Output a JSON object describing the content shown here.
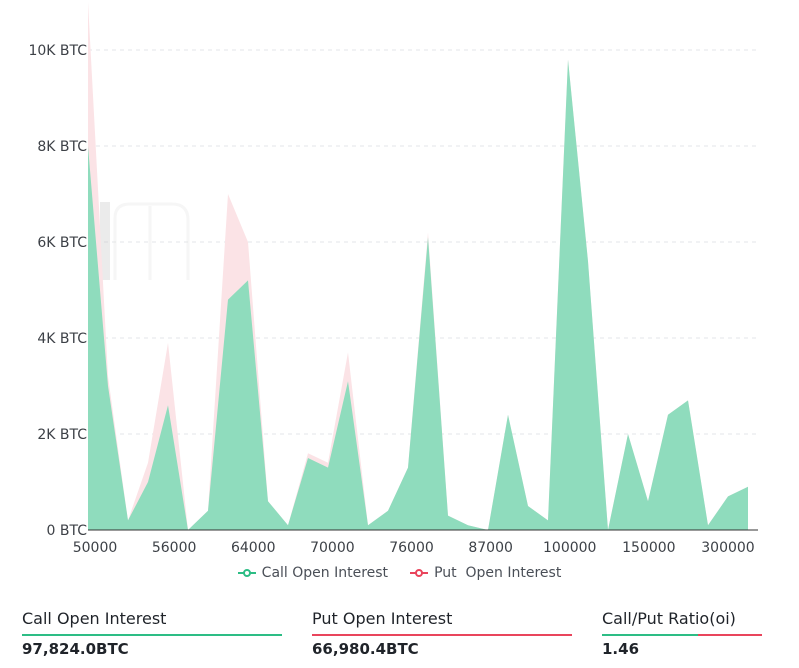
{
  "chart_data": {
    "type": "area",
    "y_tick_labels": [
      "0 BTC",
      "2K BTC",
      "4K BTC",
      "6K BTC",
      "8K BTC",
      "10K BTC"
    ],
    "ylim": [
      0,
      10000
    ],
    "x_tick_labels": [
      "50000",
      "56000",
      "64000",
      "70000",
      "76000",
      "87000",
      "100000",
      "150000",
      "300000"
    ],
    "grid": true,
    "legend_position": "bottom",
    "series": [
      {
        "name": "Put  Open Interest",
        "color": "#fbe3e6",
        "values": [
          11000,
          3200,
          200,
          1400,
          3900,
          0,
          400,
          7000,
          6000,
          600,
          100,
          1600,
          1400,
          3700,
          100,
          400,
          1300,
          6200,
          300,
          100,
          0,
          2400,
          500,
          200,
          9800,
          5600,
          0,
          2000,
          600,
          2400,
          2700,
          100,
          700,
          900
        ]
      },
      {
        "name": "Call Open Interest",
        "color": "#8fdcbd",
        "values": [
          8000,
          3000,
          200,
          1000,
          2600,
          0,
          400,
          4800,
          5200,
          600,
          100,
          1500,
          1300,
          3100,
          100,
          400,
          1300,
          6100,
          300,
          100,
          0,
          2400,
          500,
          200,
          9800,
          5600,
          0,
          2000,
          600,
          2400,
          2700,
          100,
          700,
          900
        ]
      }
    ]
  },
  "legend": {
    "call_label": "Call Open Interest",
    "put_label": "Put  Open Interest",
    "call_color": "#2dbd85",
    "put_color": "#e9455c"
  },
  "stats": {
    "call_label": "Call Open Interest",
    "call_value": "97,824.0BTC",
    "call_color": "#2dbd85",
    "put_label": "Put Open Interest",
    "put_value": "66,980.4BTC",
    "put_color": "#e9455c",
    "ratio_label": "Call/Put Ratio(oi)",
    "ratio_value": "1.46"
  }
}
